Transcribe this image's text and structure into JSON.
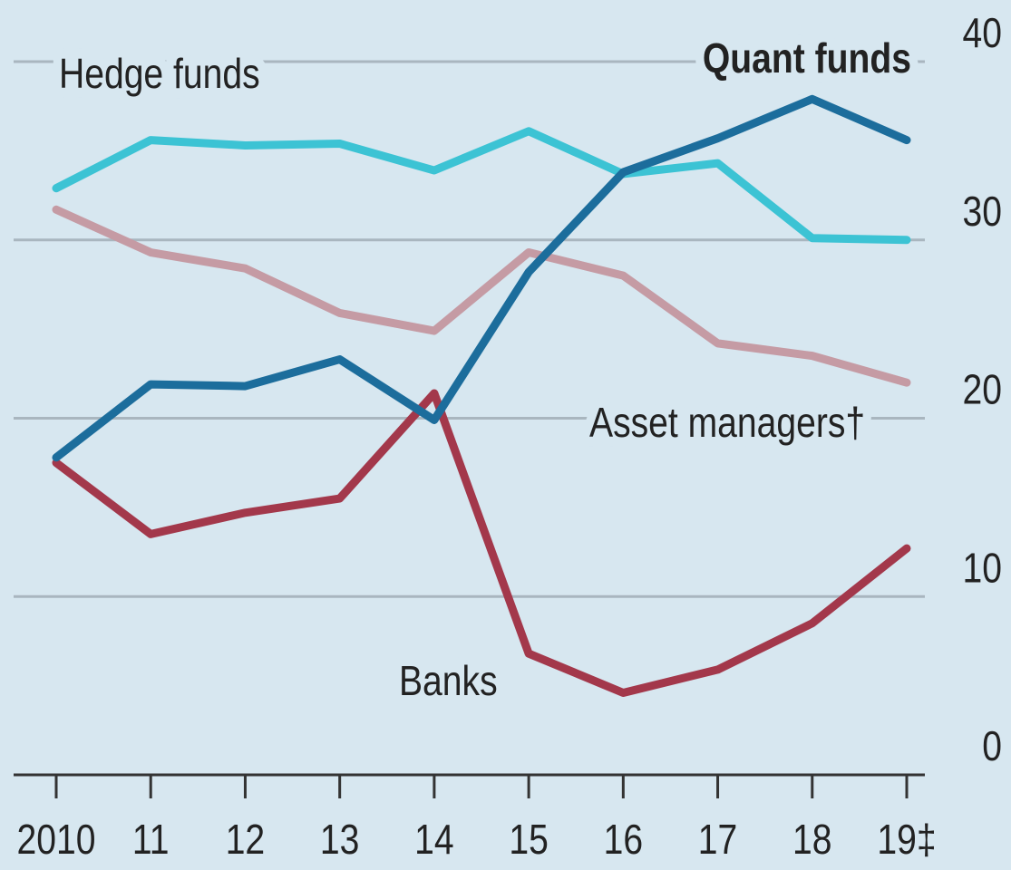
{
  "chart_data": {
    "type": "line",
    "categories": [
      "2010",
      "11",
      "12",
      "13",
      "14",
      "15",
      "16",
      "17",
      "18",
      "19‡"
    ],
    "series": [
      {
        "name": "Hedge funds",
        "color": "#3cc3d4",
        "values": [
          32.9,
          35.6,
          35.3,
          35.4,
          33.9,
          36.1,
          33.7,
          34.3,
          30.1,
          30.0
        ]
      },
      {
        "name": "Asset managers†",
        "color": "#c59ba4",
        "values": [
          31.7,
          29.3,
          28.4,
          25.9,
          24.9,
          29.3,
          28.0,
          24.2,
          23.5,
          22.0
        ]
      },
      {
        "name": "Banks",
        "color": "#a3384b",
        "values": [
          17.5,
          13.5,
          14.7,
          15.5,
          21.4,
          6.8,
          4.6,
          5.9,
          8.5,
          12.7
        ]
      },
      {
        "name": "Quant funds",
        "color": "#1c6d9c",
        "values": [
          17.8,
          21.9,
          21.8,
          23.3,
          19.9,
          28.2,
          33.8,
          35.7,
          37.9,
          35.6
        ]
      }
    ],
    "ylim": [
      0,
      40
    ],
    "yticks": [
      0,
      10,
      20,
      30,
      40
    ],
    "grid": true
  }
}
